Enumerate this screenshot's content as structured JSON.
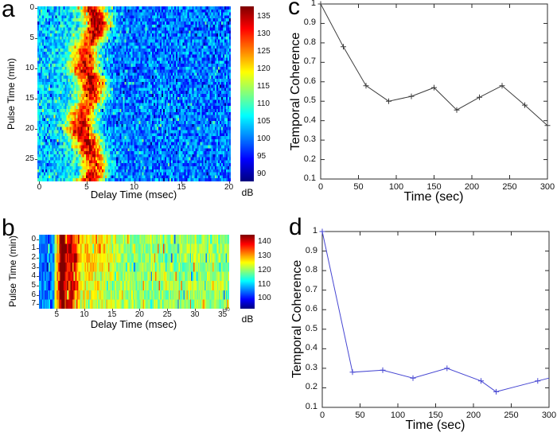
{
  "figure": {
    "background": "#ffffff",
    "text_color": "#000000"
  },
  "chart_data": [
    {
      "id": "a",
      "panel_letter": "a",
      "type": "heatmap",
      "xlabel": "Delay Time (msec)",
      "ylabel": "Pulse Time (min)",
      "x_extent": [
        -0.2,
        20.2
      ],
      "y_extent": [
        -0.25,
        28.75
      ],
      "xticks": [
        0,
        5,
        10,
        15,
        20
      ],
      "yticks": [
        0,
        5,
        10,
        15,
        20,
        25
      ],
      "colorbar": {
        "label": "dB",
        "range": [
          88,
          138
        ],
        "ticks": [
          90,
          95,
          100,
          105,
          110,
          115,
          120,
          125,
          130,
          135
        ]
      },
      "colormap": "jet",
      "description": "Noisy blue/cyan field with a strong red high-dB ridge centered near 5 msec delay, drifting slightly across 0-29 min of pulse time.",
      "model": {
        "cols": 120,
        "rows": 58,
        "seed": 42,
        "split_x": 3.8,
        "base_left": 104,
        "base_right": 100,
        "ridges": [
          {
            "center": 5.5,
            "sigma": 1.05,
            "amp": 33,
            "wobble": 0.7,
            "wobble_freq": 0.28,
            "amp_var": 4,
            "drift": true
          }
        ],
        "noise": 6,
        "speckle_prob": 0.16,
        "speckle_amp": 9,
        "value_range": [
          88,
          138
        ]
      }
    },
    {
      "id": "b",
      "panel_letter": "b",
      "type": "heatmap",
      "xlabel": "Delay Time (msec)",
      "ylabel": "Pulse Time (min)",
      "x_extent": [
        1.8,
        36.2
      ],
      "y_extent": [
        -0.5,
        7.5
      ],
      "xticks": [
        5,
        10,
        15,
        20,
        25,
        30,
        35
      ],
      "tiny_end_tick_label": "40",
      "yticks": [
        0,
        1,
        2,
        3,
        4,
        5,
        6,
        7
      ],
      "colorbar": {
        "label": "dB",
        "range": [
          93,
          145
        ],
        "ticks": [
          100,
          110,
          120,
          130,
          140
        ]
      },
      "colormap": "jet",
      "description": "Mostly yellow-green field with blue band below ~5 msec and deep red streaks near 5-8 msec, over 8 pulse-time rows (0-7 min).",
      "model": {
        "cols": 170,
        "rows": 8,
        "seed": 1337,
        "split_x": 4.7,
        "base_left": 106,
        "base_right": 120.5,
        "ridges": [
          {
            "center": 5.9,
            "sigma": 0.55,
            "amp": 25,
            "wobble": 0.15,
            "wobble_freq": 0.9,
            "amp_var": 3,
            "drift": true
          },
          {
            "center": 7.6,
            "sigma": 0.75,
            "amp": 17,
            "wobble": 0.2,
            "wobble_freq": 1.3,
            "amp_var": 3,
            "drift": true
          },
          {
            "center": 11.5,
            "sigma": 2.5,
            "amp": 6,
            "wobble": 0,
            "wobble_freq": 0,
            "amp_var": 2,
            "drift": false
          }
        ],
        "noise": 5,
        "speckle_prob": 0.15,
        "speckle_amp": 13,
        "value_range": [
          93,
          145
        ]
      }
    },
    {
      "id": "c",
      "panel_letter": "c",
      "type": "line",
      "xlabel": "Time (sec)",
      "ylabel": "Temporal Coherence",
      "xlim": [
        0,
        300
      ],
      "ylim": [
        0.1,
        1
      ],
      "xticks": [
        0,
        50,
        100,
        150,
        200,
        250,
        300
      ],
      "yticks": [
        0.1,
        0.2,
        0.3,
        0.4,
        0.5,
        0.6,
        0.7,
        0.8,
        0.9,
        1
      ],
      "ytick_labels": [
        "0.1",
        "0.2",
        "0.3",
        "0.4",
        "0.5",
        "0.6",
        "0.7",
        "0.8",
        "0.9",
        "1"
      ],
      "x": [
        0,
        30,
        60,
        90,
        120,
        150,
        180,
        210,
        240,
        270,
        300
      ],
      "y": [
        1.0,
        0.78,
        0.58,
        0.5,
        0.525,
        0.57,
        0.455,
        0.52,
        0.58,
        0.48,
        0.375
      ],
      "line_color": "#3c3c3c",
      "marker": "+",
      "marker_skip_last": false
    },
    {
      "id": "d",
      "panel_letter": "d",
      "type": "line",
      "xlabel": "Time (sec)",
      "ylabel": "Temporal Coherence",
      "xlim": [
        0,
        300
      ],
      "ylim": [
        0.1,
        1
      ],
      "xticks": [
        0,
        50,
        100,
        150,
        200,
        250,
        300
      ],
      "yticks": [
        0.1,
        0.2,
        0.3,
        0.4,
        0.5,
        0.6,
        0.7,
        0.8,
        0.9,
        1
      ],
      "ytick_labels": [
        "0.1",
        "0.2",
        "0.3",
        "0.4",
        "0.5",
        "0.6",
        "0.7",
        "0.8",
        "0.9",
        "1"
      ],
      "x": [
        0,
        40,
        80,
        120,
        165,
        210,
        230,
        285,
        300
      ],
      "y": [
        1.0,
        0.28,
        0.29,
        0.25,
        0.3,
        0.235,
        0.18,
        0.235,
        0.25
      ],
      "line_color": "#4646d2",
      "marker": "+",
      "marker_skip_last": true
    }
  ]
}
